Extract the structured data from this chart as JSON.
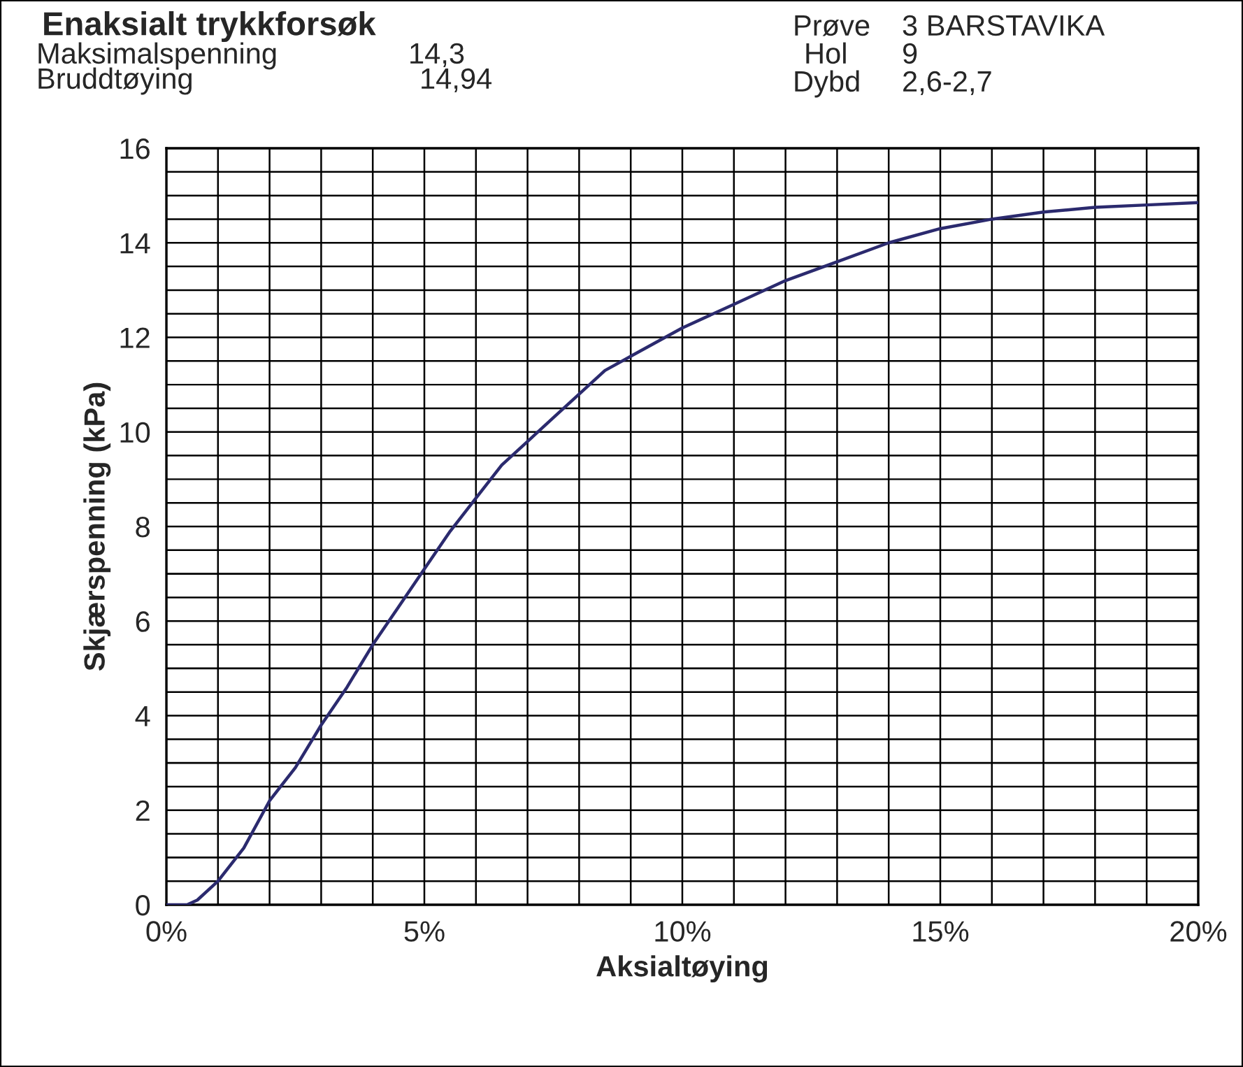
{
  "chart_data": {
    "type": "line",
    "title": "Enaksialt trykkforsøk",
    "xlabel": "Aksialtøying",
    "ylabel": "Skjærspenning (kPa)",
    "annotations": [
      "Maksimalspenning",
      "14,3",
      "Bruddtøying",
      "14,94",
      "Prøve",
      "3 BARSTAVIKA",
      "Hol",
      "9",
      "Dybd",
      "2,6-2,7"
    ],
    "series": [
      {
        "color": "#2b2a6e",
        "x": [
          0,
          0.4,
          0.6,
          1,
          1.5,
          2,
          2.5,
          3,
          3.5,
          4,
          4.5,
          5,
          5.5,
          6,
          6.5,
          7,
          7.5,
          8,
          8.5,
          9,
          9.5,
          10,
          11,
          12,
          13,
          14,
          15,
          16,
          17,
          18,
          19,
          20
        ],
        "values": [
          0,
          0,
          0.1,
          0.5,
          1.2,
          2.2,
          2.9,
          3.8,
          4.6,
          5.5,
          6.3,
          7.1,
          7.9,
          8.6,
          9.3,
          9.8,
          10.3,
          10.8,
          11.3,
          11.6,
          11.9,
          12.2,
          12.7,
          13.2,
          13.6,
          14.0,
          14.3,
          14.5,
          14.65,
          14.75,
          14.8,
          14.85
        ]
      }
    ],
    "xlim": [
      0,
      20
    ],
    "ylim": [
      0,
      16
    ],
    "xticks": [
      {
        "value": 0,
        "label": "0%"
      },
      {
        "value": 1,
        "label": null
      },
      {
        "value": 2,
        "label": null
      },
      {
        "value": 3,
        "label": null
      },
      {
        "value": 4,
        "label": null
      },
      {
        "value": 5,
        "label": "5%"
      },
      {
        "value": 6,
        "label": null
      },
      {
        "value": 7,
        "label": null
      },
      {
        "value": 8,
        "label": null
      },
      {
        "value": 9,
        "label": null
      },
      {
        "value": 10,
        "label": "10%"
      },
      {
        "value": 11,
        "label": null
      },
      {
        "value": 12,
        "label": null
      },
      {
        "value": 13,
        "label": null
      },
      {
        "value": 14,
        "label": null
      },
      {
        "value": 15,
        "label": "15%"
      },
      {
        "value": 16,
        "label": null
      },
      {
        "value": 17,
        "label": null
      },
      {
        "value": 18,
        "label": null
      },
      {
        "value": 19,
        "label": null
      },
      {
        "value": 20,
        "label": "20%"
      }
    ],
    "yticks": [
      0,
      {
        "value": 0.5,
        "label": null
      },
      {
        "value": 1,
        "label": null
      },
      {
        "value": 1.5,
        "label": null
      },
      2,
      {
        "value": 2.5,
        "label": null
      },
      {
        "value": 3,
        "label": null
      },
      {
        "value": 3.5,
        "label": null
      },
      4,
      {
        "value": 4.5,
        "label": null
      },
      {
        "value": 5,
        "label": null
      },
      {
        "value": 5.5,
        "label": null
      },
      6,
      {
        "value": 6.5,
        "label": null
      },
      {
        "value": 7,
        "label": null
      },
      {
        "value": 7.5,
        "label": null
      },
      8,
      {
        "value": 8.5,
        "label": null
      },
      {
        "value": 9,
        "label": null
      },
      {
        "value": 9.5,
        "label": null
      },
      10,
      {
        "value": 10.5,
        "label": null
      },
      {
        "value": 11,
        "label": null
      },
      {
        "value": 11.5,
        "label": null
      },
      12,
      {
        "value": 12.5,
        "label": null
      },
      {
        "value": 13,
        "label": null
      },
      {
        "value": 13.5,
        "label": null
      },
      14,
      {
        "value": 14.5,
        "label": null
      },
      {
        "value": 15,
        "label": null
      },
      {
        "value": 15.5,
        "label": null
      },
      16
    ],
    "grid": true,
    "legend": false,
    "marker": "none",
    "line_style": "solid"
  }
}
